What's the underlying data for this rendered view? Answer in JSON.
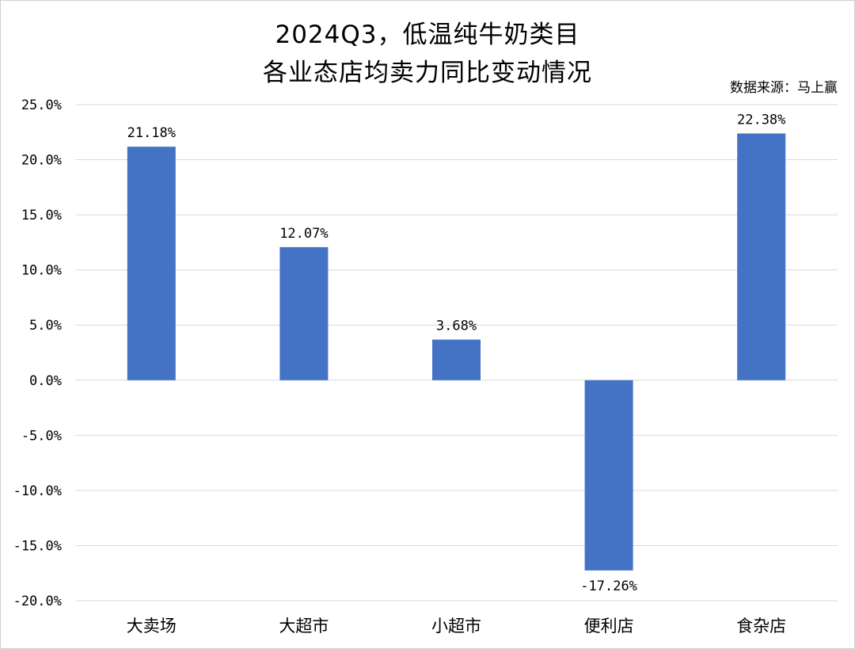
{
  "chart_data": {
    "type": "bar",
    "title_line1": "2024Q3，低温纯牛奶类目",
    "title_line2": "各业态店均卖力同比变动情况",
    "source": "数据来源：马上赢",
    "categories": [
      "大卖场",
      "大超市",
      "小超市",
      "便利店",
      "食杂店"
    ],
    "values": [
      21.18,
      12.07,
      3.68,
      -17.26,
      22.38
    ],
    "data_labels": [
      "21.18%",
      "12.07%",
      "3.68%",
      "-17.26%",
      "22.38%"
    ],
    "ylim": [
      -20,
      25
    ],
    "ytick_values": [
      25,
      20,
      15,
      10,
      5,
      0,
      -5,
      -10,
      -15,
      -20
    ],
    "ytick_labels": [
      "25.0%",
      "20.0%",
      "15.0%",
      "10.0%",
      "5.0%",
      "0.0%",
      "-5.0%",
      "-10.0%",
      "-15.0%",
      "-20.0%"
    ],
    "grid": true,
    "legend": "none",
    "colors": {
      "bar": "#4472C4",
      "grid": "#d9d9d9",
      "text": "#000000"
    }
  }
}
